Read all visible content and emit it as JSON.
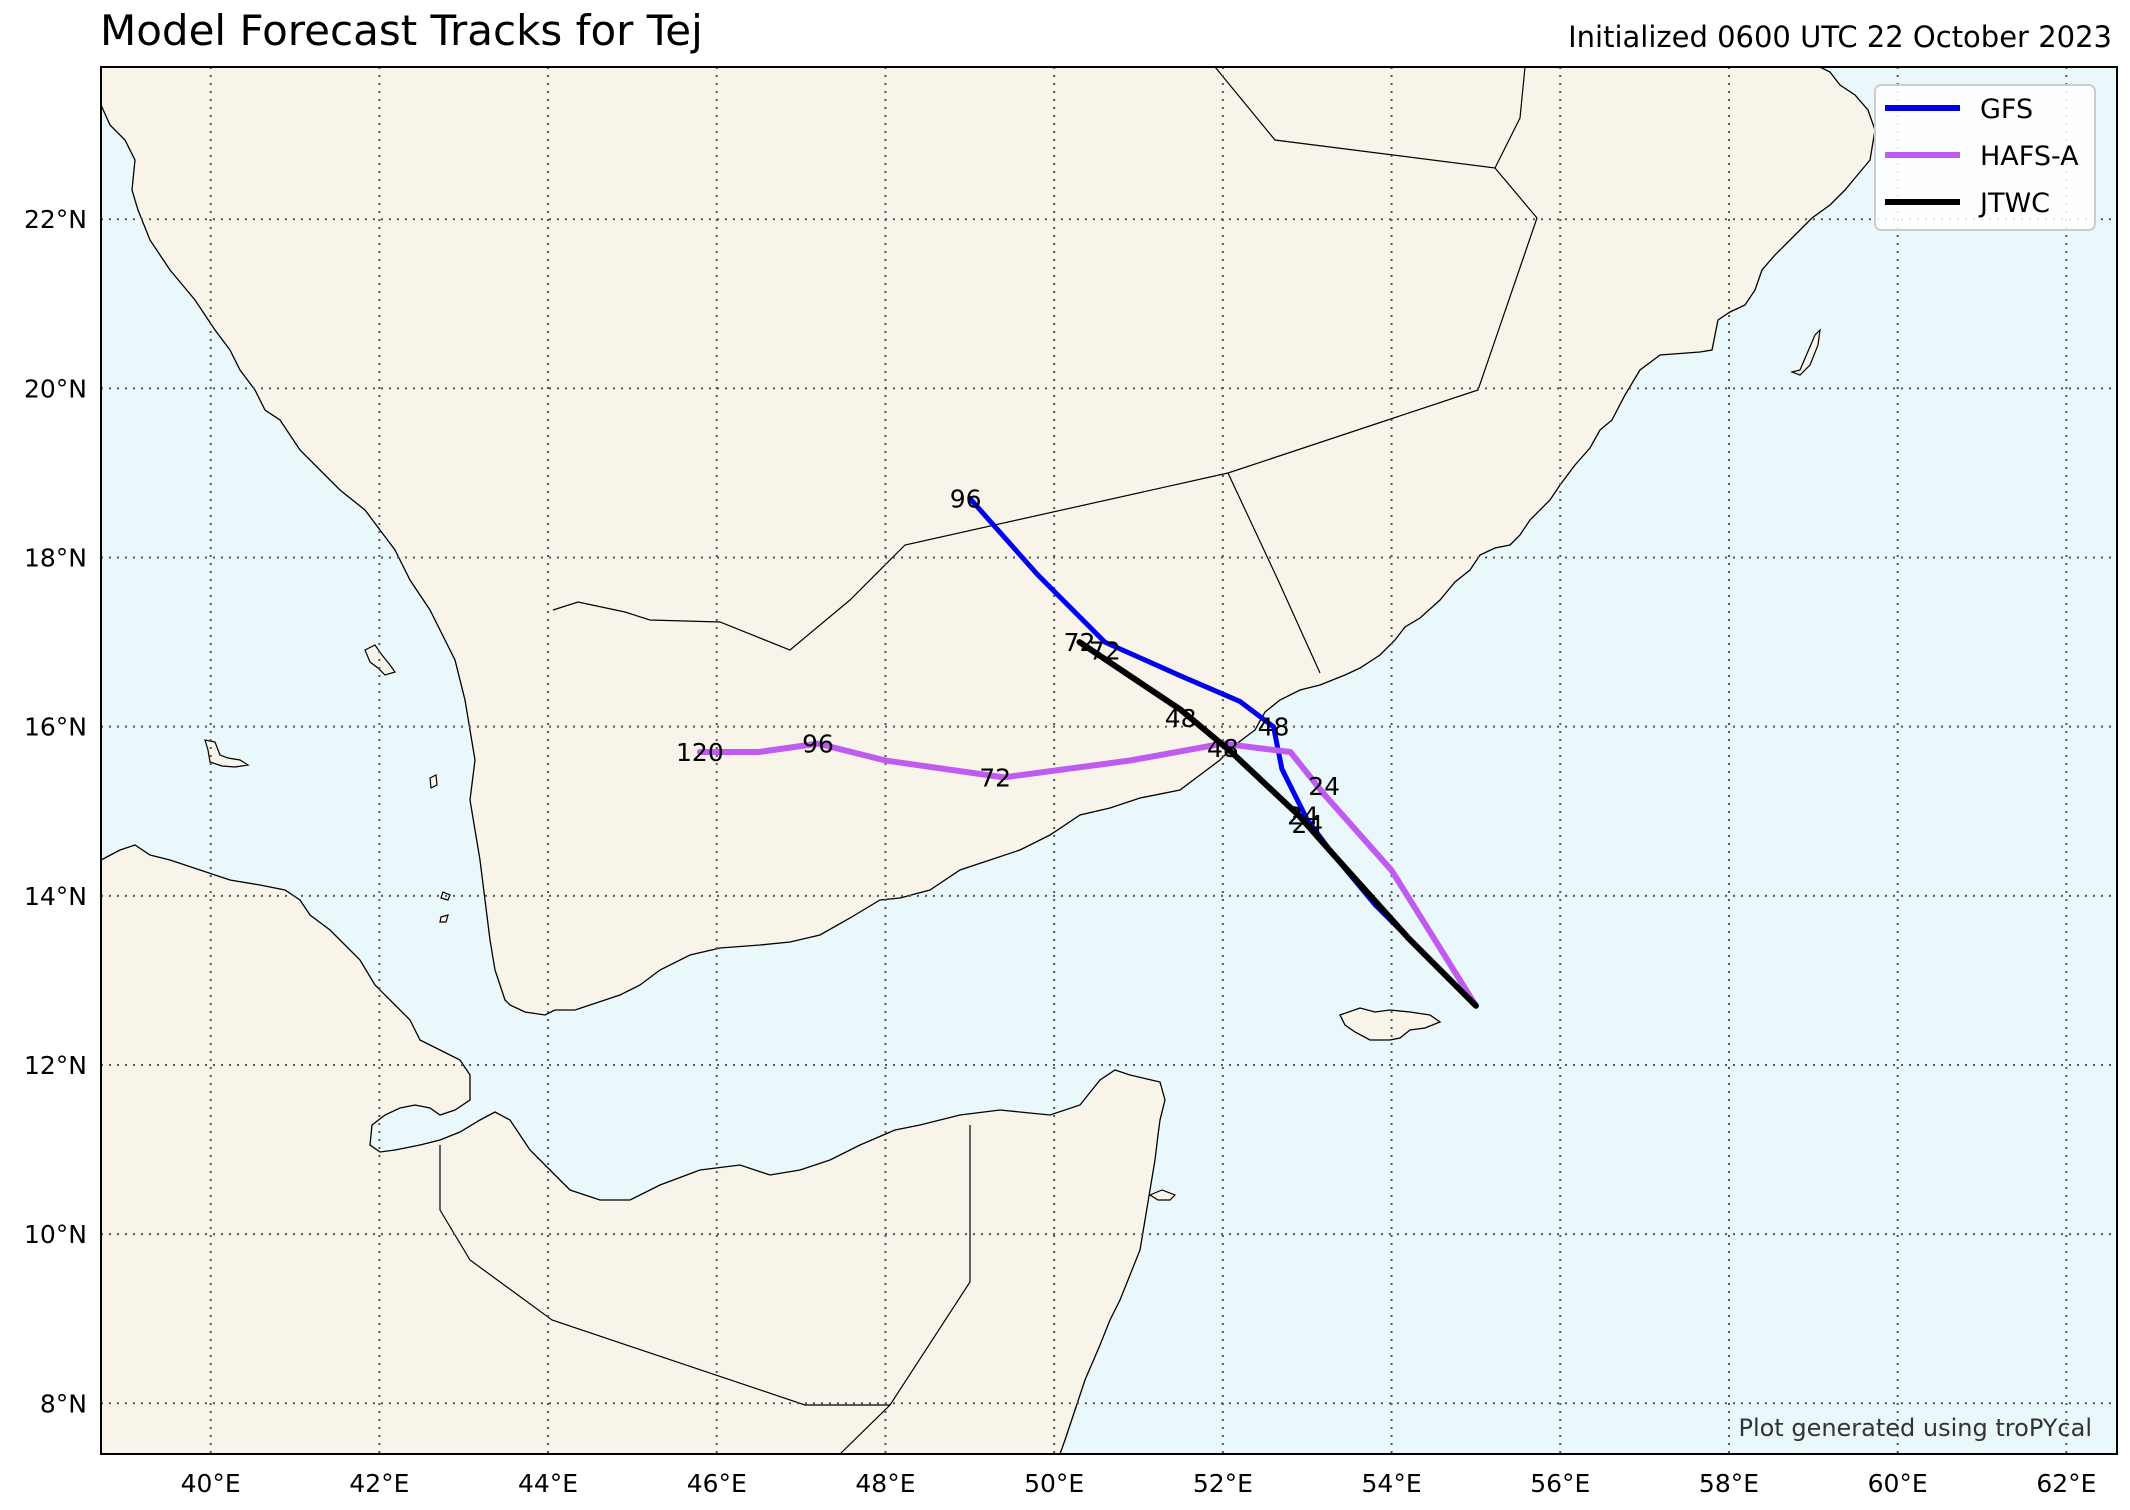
{
  "header": {
    "title": "Model Forecast Tracks for Tej",
    "init": "Initialized 0600 UTC 22 October 2023"
  },
  "credit": "Plot generated using troPYcal",
  "colors": {
    "ocean": "#eaf8fb",
    "land": "#f8f4ea",
    "GFS": "#0000ee",
    "HAFS-A": "#bf5bf0",
    "JTWC": "#000000"
  },
  "chart_data": {
    "type": "map",
    "projection": "plate-carree",
    "extent": {
      "lon": [
        38.7,
        62.6
      ],
      "lat": [
        7.4,
        23.8
      ]
    },
    "grid": true,
    "legend_position": "top-right",
    "xticks": [
      {
        "value": 40,
        "label": "40°E"
      },
      {
        "value": 42,
        "label": "42°E"
      },
      {
        "value": 44,
        "label": "44°E"
      },
      {
        "value": 46,
        "label": "46°E"
      },
      {
        "value": 48,
        "label": "48°E"
      },
      {
        "value": 50,
        "label": "50°E"
      },
      {
        "value": 52,
        "label": "52°E"
      },
      {
        "value": 54,
        "label": "54°E"
      },
      {
        "value": 56,
        "label": "56°E"
      },
      {
        "value": 58,
        "label": "58°E"
      },
      {
        "value": 60,
        "label": "60°E"
      },
      {
        "value": 62,
        "label": "62°E"
      }
    ],
    "yticks": [
      {
        "value": 8,
        "label": "8°N"
      },
      {
        "value": 10,
        "label": "10°N"
      },
      {
        "value": 12,
        "label": "12°N"
      },
      {
        "value": 14,
        "label": "14°N"
      },
      {
        "value": 16,
        "label": "16°N"
      },
      {
        "value": 18,
        "label": "18°N"
      },
      {
        "value": 20,
        "label": "20°N"
      },
      {
        "value": 22,
        "label": "22°N"
      }
    ],
    "series": [
      {
        "name": "GFS",
        "points": [
          [
            55.0,
            12.7
          ],
          [
            54.4,
            13.3
          ],
          [
            53.8,
            13.9
          ],
          [
            53.3,
            14.5
          ],
          [
            53.0,
            14.9
          ],
          [
            52.7,
            15.5
          ],
          [
            52.6,
            16.0
          ],
          [
            52.2,
            16.3
          ],
          [
            51.5,
            16.6
          ],
          [
            50.6,
            17.0
          ],
          [
            49.8,
            17.8
          ],
          [
            49.0,
            18.7
          ]
        ],
        "labels": [
          {
            "text": "24",
            "lon": 52.95,
            "lat": 14.95
          },
          {
            "text": "48",
            "lon": 52.6,
            "lat": 16.0
          },
          {
            "text": "72",
            "lon": 50.6,
            "lat": 16.9
          },
          {
            "text": "96",
            "lon": 48.95,
            "lat": 18.7
          }
        ]
      },
      {
        "name": "HAFS-A",
        "points": [
          [
            55.0,
            12.7
          ],
          [
            54.5,
            13.5
          ],
          [
            54.0,
            14.3
          ],
          [
            53.2,
            15.2
          ],
          [
            52.8,
            15.7
          ],
          [
            52.0,
            15.8
          ],
          [
            50.9,
            15.6
          ],
          [
            49.4,
            15.4
          ],
          [
            48.0,
            15.6
          ],
          [
            47.2,
            15.8
          ],
          [
            46.5,
            15.7
          ],
          [
            45.8,
            15.7
          ]
        ],
        "labels": [
          {
            "text": "24",
            "lon": 53.2,
            "lat": 15.3
          },
          {
            "text": "48",
            "lon": 52.0,
            "lat": 15.75
          },
          {
            "text": "72",
            "lon": 49.3,
            "lat": 15.4
          },
          {
            "text": "96",
            "lon": 47.2,
            "lat": 15.8
          },
          {
            "text": "120",
            "lon": 45.8,
            "lat": 15.7
          }
        ]
      },
      {
        "name": "JTWC",
        "points": [
          [
            55.0,
            12.7
          ],
          [
            54.2,
            13.5
          ],
          [
            53.3,
            14.5
          ],
          [
            52.9,
            14.95
          ],
          [
            52.1,
            15.7
          ],
          [
            51.5,
            16.2
          ],
          [
            50.3,
            17.0
          ]
        ],
        "labels": [
          {
            "text": "24",
            "lon": 53.0,
            "lat": 14.85
          },
          {
            "text": "48",
            "lon": 51.5,
            "lat": 16.1
          },
          {
            "text": "72",
            "lon": 50.3,
            "lat": 17.0
          }
        ]
      }
    ]
  }
}
